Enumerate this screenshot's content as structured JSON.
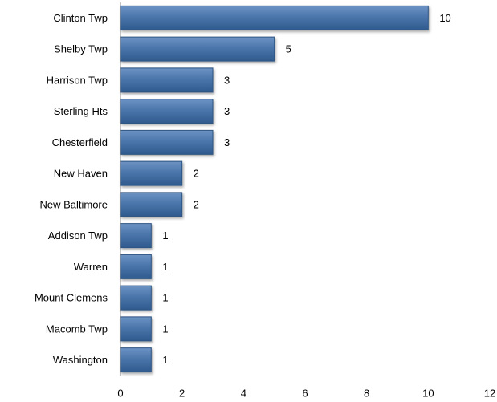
{
  "chart_data": {
    "type": "bar",
    "orientation": "horizontal",
    "title": "",
    "xlabel": "",
    "ylabel": "",
    "categories": [
      "Clinton Twp",
      "Shelby Twp",
      "Harrison Twp",
      "Sterling Hts",
      "Chesterfield",
      "New Haven",
      "New Baltimore",
      "Addison Twp",
      "Warren",
      "Mount Clemens",
      "Macomb Twp",
      "Washington"
    ],
    "values": [
      10,
      5,
      3,
      3,
      3,
      2,
      2,
      1,
      1,
      1,
      1,
      1
    ],
    "xlim": [
      0,
      12
    ],
    "x_ticks": [
      0,
      2,
      4,
      6,
      8,
      10,
      12
    ],
    "grid": false,
    "legend": "none",
    "data_labels": true,
    "bar_color": "#4a74a8",
    "bar_edge_color": "#2f5582"
  }
}
